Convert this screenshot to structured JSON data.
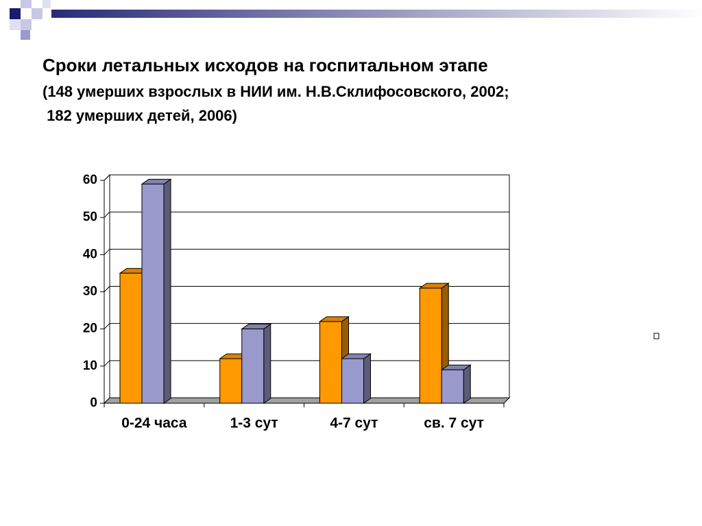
{
  "chart_data": {
    "type": "bar3d",
    "title": "Сроки летальных исходов на госпитальном этапе",
    "subtitle": [
      "(148 умерших взрослых в НИИ им. Н.В.Склифосовского, 2002;",
      " 182 умерших детей, 2006)"
    ],
    "categories": [
      "0-24 часа",
      "1-3 сут",
      "4-7 сут",
      "св. 7 сут"
    ],
    "series": [
      {
        "color": "#ff9900",
        "values": [
          35,
          12,
          22,
          31
        ]
      },
      {
        "color": "#9999cc",
        "values": [
          59,
          20,
          12,
          9
        ]
      }
    ],
    "ylim": [
      0,
      60
    ],
    "yticks": [
      0,
      10,
      20,
      30,
      40,
      50,
      60
    ],
    "grid": true
  }
}
